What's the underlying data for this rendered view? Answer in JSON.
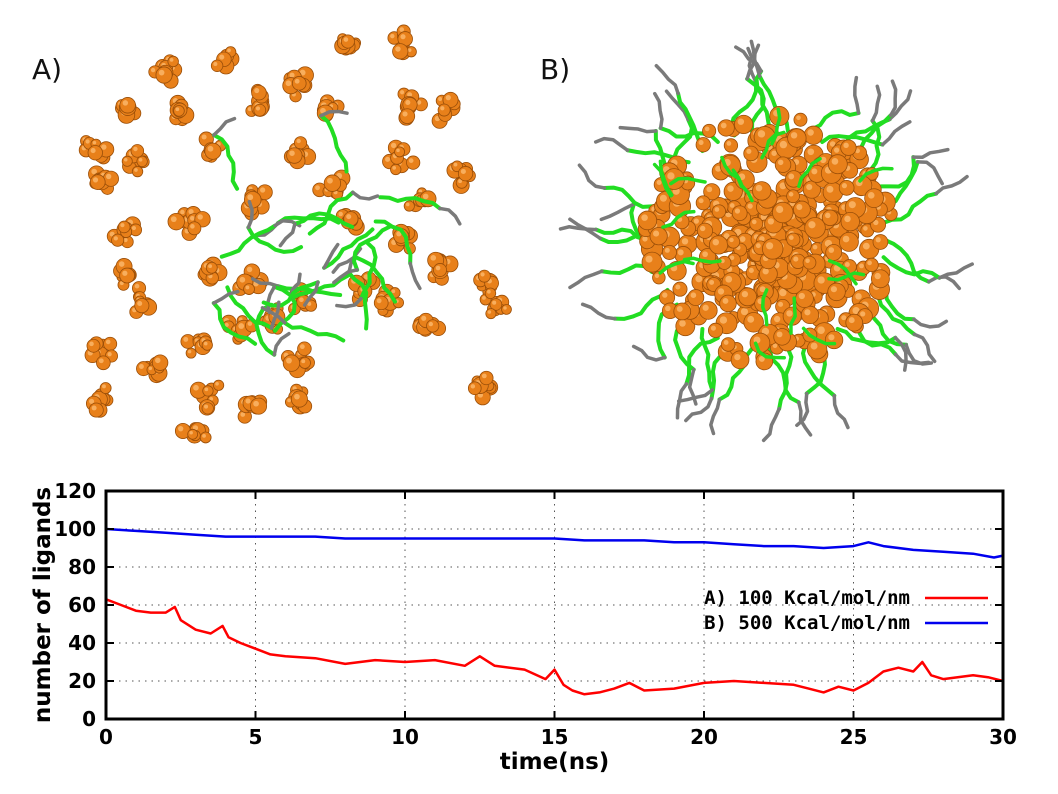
{
  "panels": [
    {
      "label": "A)"
    },
    {
      "label": "B)"
    }
  ],
  "colors": {
    "nanoparticle": "#e8801a",
    "ligand": "#22dd22",
    "ligand_tail": "#7a7a7a",
    "series_a": "#ff0000",
    "series_b": "#0000ee"
  },
  "chart_data": {
    "type": "line",
    "title": "",
    "xlabel": "time(ns)",
    "ylabel": "number of ligands",
    "xlim": [
      0,
      30
    ],
    "ylim": [
      0,
      120
    ],
    "xticks": [
      0,
      5,
      10,
      15,
      20,
      25,
      30
    ],
    "yticks": [
      0,
      20,
      40,
      60,
      80,
      100,
      120
    ],
    "grid": true,
    "legend_position": "right",
    "series": [
      {
        "name": "A) 100 Kcal/mol/nm",
        "color": "#ff0000",
        "x": [
          0,
          0.5,
          1,
          1.5,
          2,
          2.3,
          2.5,
          3,
          3.5,
          3.9,
          4.1,
          4.5,
          5,
          5.5,
          6,
          7,
          8,
          9,
          10,
          11,
          12,
          12.5,
          13,
          14,
          14.7,
          15,
          15.3,
          15.6,
          16,
          16.5,
          17,
          17.5,
          18,
          19,
          20,
          21,
          22,
          23,
          23.5,
          24,
          24.5,
          25,
          25.5,
          26,
          26.5,
          27,
          27.3,
          27.6,
          28,
          29,
          29.5,
          30
        ],
        "y": [
          63,
          60,
          57,
          56,
          56,
          59,
          52,
          47,
          45,
          49,
          43,
          40,
          37,
          34,
          33,
          32,
          29,
          31,
          30,
          31,
          28,
          33,
          28,
          26,
          21,
          26,
          18,
          15,
          13,
          14,
          16,
          19,
          15,
          16,
          19,
          20,
          19,
          18,
          16,
          14,
          17,
          15,
          19,
          25,
          27,
          25,
          30,
          23,
          21,
          23,
          22,
          20
        ]
      },
      {
        "name": "B) 500 Kcal/mol/nm",
        "color": "#0000ee",
        "x": [
          0,
          1,
          2,
          3,
          4,
          5,
          6,
          7,
          8,
          9,
          10,
          11,
          12,
          13,
          14,
          15,
          16,
          17,
          18,
          19,
          20,
          21,
          22,
          23,
          24,
          25,
          25.5,
          26,
          27,
          28,
          29,
          29.7,
          30
        ],
        "y": [
          100,
          99,
          98,
          97,
          96,
          96,
          96,
          96,
          95,
          95,
          95,
          95,
          95,
          95,
          95,
          95,
          94,
          94,
          94,
          93,
          93,
          92,
          91,
          91,
          90,
          91,
          93,
          91,
          89,
          88,
          87,
          85,
          86
        ]
      }
    ]
  }
}
